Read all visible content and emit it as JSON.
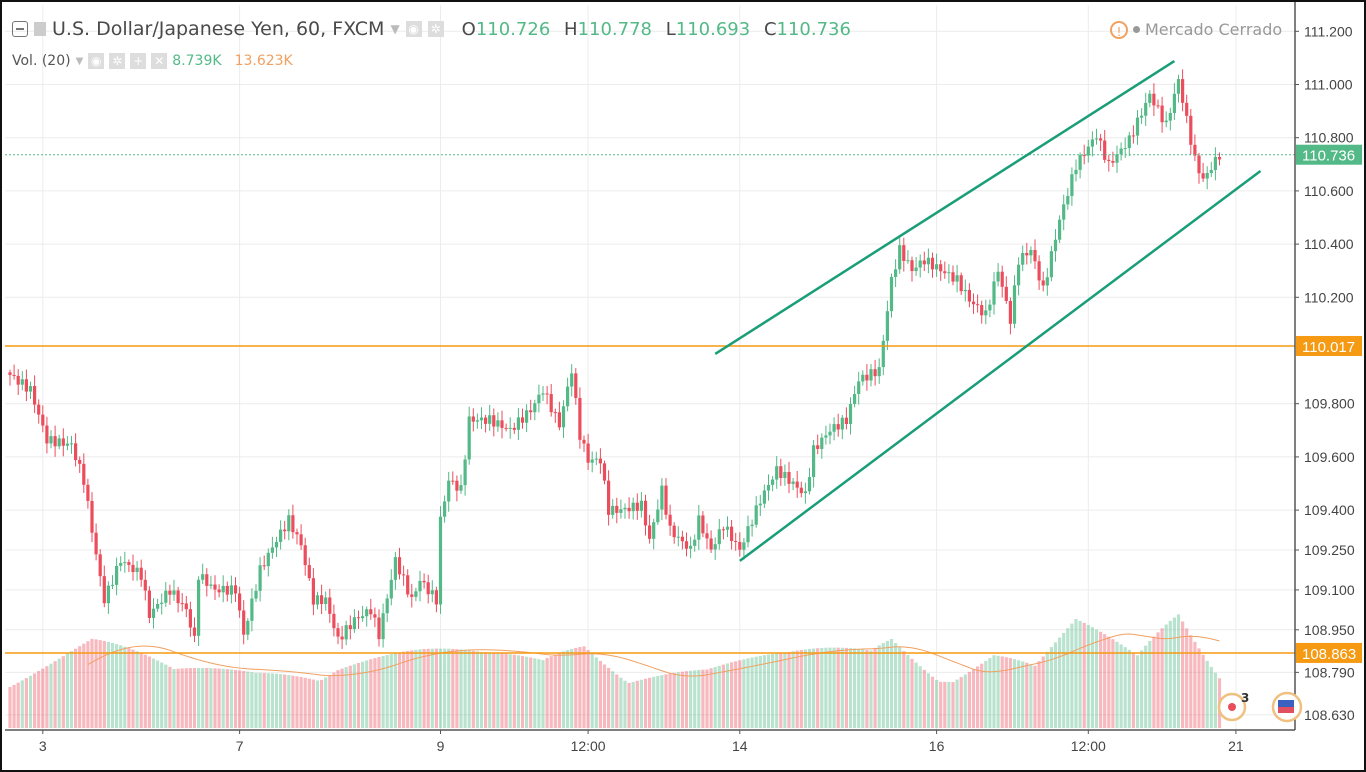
{
  "header": {
    "symbol": "U.S. Dollar/Japanese Yen, 60, FXCM",
    "o_label": "O",
    "o": "110.726",
    "h_label": "H",
    "h": "110.778",
    "l_label": "L",
    "l": "110.693",
    "c_label": "C",
    "c": "110.736",
    "status": "Mercado Cerrado"
  },
  "volume_legend": {
    "label": "Vol. (20)",
    "value": "8.739K",
    "ma_value": "13.623K"
  },
  "badges": {
    "events_count": "3"
  },
  "colors": {
    "up": "#53b987",
    "down": "#eb4d5c",
    "channel": "#1a9e78",
    "level": "#f59a12",
    "grid": "#ececec"
  },
  "chart_data": {
    "type": "candlestick",
    "title": "U.S. Dollar/Japanese Yen, 60, FXCM",
    "bar_count": 296,
    "close_keyframes": [
      [
        0,
        109.908
      ],
      [
        5,
        109.852
      ],
      [
        9,
        109.664
      ],
      [
        15,
        109.645
      ],
      [
        18,
        109.513
      ],
      [
        21,
        109.231
      ],
      [
        23,
        109.062
      ],
      [
        27,
        109.212
      ],
      [
        32,
        109.156
      ],
      [
        34,
        109.006
      ],
      [
        39,
        109.1
      ],
      [
        43,
        109.025
      ],
      [
        45,
        108.912
      ],
      [
        46,
        109.156
      ],
      [
        50,
        109.1
      ],
      [
        55,
        109.1
      ],
      [
        57,
        108.931
      ],
      [
        61,
        109.175
      ],
      [
        65,
        109.288
      ],
      [
        68,
        109.363
      ],
      [
        71,
        109.269
      ],
      [
        74,
        109.062
      ],
      [
        77,
        109.062
      ],
      [
        80,
        108.912
      ],
      [
        84,
        108.987
      ],
      [
        88,
        109.025
      ],
      [
        90,
        108.931
      ],
      [
        94,
        109.212
      ],
      [
        98,
        109.062
      ],
      [
        100,
        109.137
      ],
      [
        104,
        109.062
      ],
      [
        105,
        109.363
      ],
      [
        107,
        109.513
      ],
      [
        110,
        109.476
      ],
      [
        112,
        109.739
      ],
      [
        117,
        109.739
      ],
      [
        122,
        109.701
      ],
      [
        127,
        109.776
      ],
      [
        130,
        109.852
      ],
      [
        134,
        109.72
      ],
      [
        137,
        109.927
      ],
      [
        139,
        109.682
      ],
      [
        141,
        109.588
      ],
      [
        144,
        109.588
      ],
      [
        146,
        109.4
      ],
      [
        149,
        109.4
      ],
      [
        154,
        109.419
      ],
      [
        156,
        109.288
      ],
      [
        159,
        109.476
      ],
      [
        161,
        109.325
      ],
      [
        166,
        109.25
      ],
      [
        168,
        109.363
      ],
      [
        171,
        109.25
      ],
      [
        174,
        109.344
      ],
      [
        178,
        109.25
      ],
      [
        183,
        109.438
      ],
      [
        187,
        109.551
      ],
      [
        190,
        109.513
      ],
      [
        194,
        109.457
      ],
      [
        196,
        109.626
      ],
      [
        200,
        109.701
      ],
      [
        204,
        109.739
      ],
      [
        207,
        109.889
      ],
      [
        212,
        109.927
      ],
      [
        215,
        110.265
      ],
      [
        217,
        110.378
      ],
      [
        220,
        110.303
      ],
      [
        223,
        110.34
      ],
      [
        227,
        110.303
      ],
      [
        231,
        110.265
      ],
      [
        234,
        110.19
      ],
      [
        238,
        110.133
      ],
      [
        241,
        110.303
      ],
      [
        244,
        110.115
      ],
      [
        246,
        110.34
      ],
      [
        249,
        110.378
      ],
      [
        252,
        110.227
      ],
      [
        256,
        110.491
      ],
      [
        260,
        110.697
      ],
      [
        265,
        110.81
      ],
      [
        268,
        110.697
      ],
      [
        273,
        110.792
      ],
      [
        278,
        110.961
      ],
      [
        282,
        110.848
      ],
      [
        285,
        111.017
      ],
      [
        289,
        110.716
      ],
      [
        291,
        110.641
      ],
      [
        295,
        110.736
      ]
    ],
    "volume_keyframes_k": [
      [
        0,
        9
      ],
      [
        20,
        12
      ],
      [
        40,
        7
      ],
      [
        60,
        8
      ],
      [
        80,
        11
      ],
      [
        100,
        10
      ],
      [
        115,
        9
      ],
      [
        130,
        9
      ],
      [
        140,
        13
      ],
      [
        150,
        10
      ],
      [
        170,
        8
      ],
      [
        190,
        9
      ],
      [
        210,
        11
      ],
      [
        215,
        14
      ],
      [
        230,
        9
      ],
      [
        240,
        11
      ],
      [
        250,
        8
      ],
      [
        260,
        13
      ],
      [
        275,
        9
      ],
      [
        285,
        16
      ],
      [
        295,
        8.739
      ]
    ],
    "volume_ma_k": 13.623,
    "x_ticks": [
      {
        "bar": 8,
        "label": "3"
      },
      {
        "bar": 56,
        "label": "7"
      },
      {
        "bar": 105,
        "label": "9"
      },
      {
        "bar": 141,
        "label": "12:00"
      },
      {
        "bar": 178,
        "label": "14"
      },
      {
        "bar": 226,
        "label": "16"
      },
      {
        "bar": 263,
        "label": "12:00"
      },
      {
        "bar": 299,
        "label": "21"
      }
    ],
    "y_ticks": [
      "111.200",
      "111.000",
      "110.800",
      "110.600",
      "110.400",
      "110.200",
      "109.800",
      "109.600",
      "109.400",
      "109.250",
      "109.100",
      "108.950",
      "108.790",
      "108.630"
    ],
    "last_price": "110.736",
    "horizontal_levels": [
      "110.017",
      "108.863"
    ],
    "trend_lines": [
      [
        [
          172,
          109.987
        ],
        [
          284,
          111.088
        ]
      ],
      [
        [
          178,
          109.209
        ],
        [
          305,
          110.675
        ]
      ]
    ],
    "ylim": [
      108.56,
      111.27
    ]
  }
}
